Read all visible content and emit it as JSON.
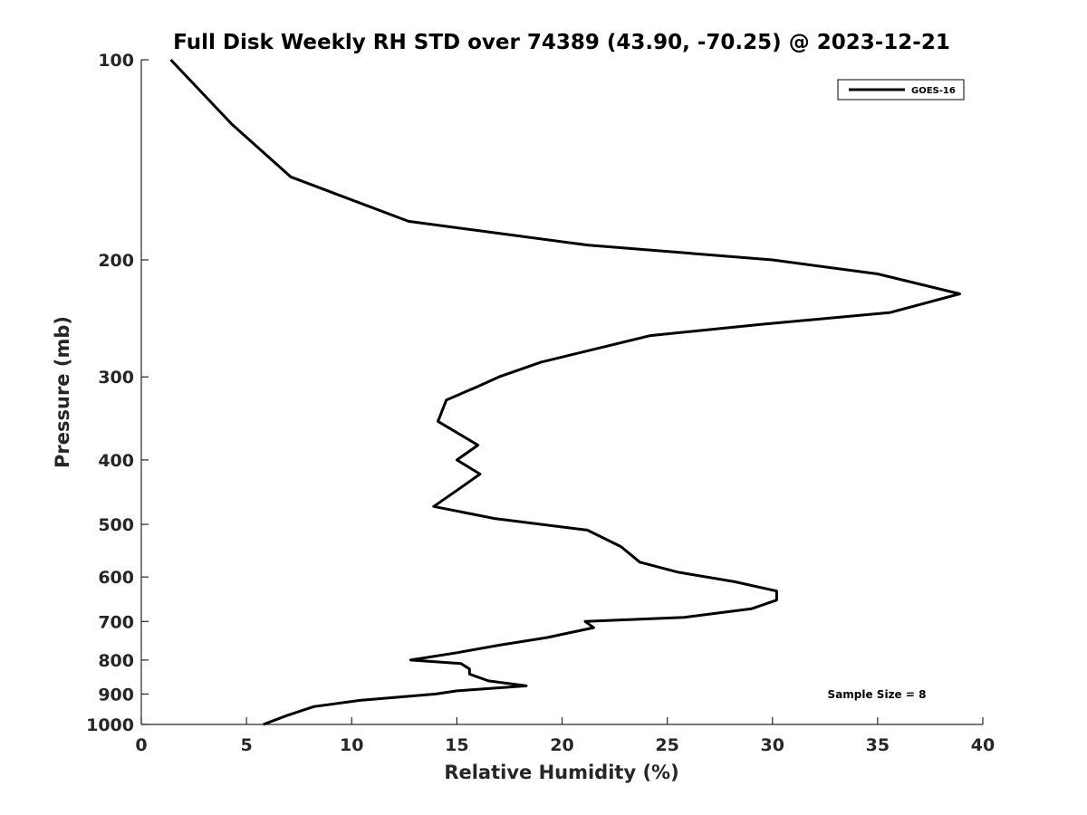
{
  "chart_data": {
    "type": "line",
    "title": "Full Disk Weekly RH STD over 74389 (43.90, -70.25) @ 2023-12-21",
    "xlabel": "Relative Humidity (%)",
    "ylabel": "Pressure (mb)",
    "xlim": [
      0,
      40
    ],
    "ylim": [
      1000,
      100
    ],
    "yscale": "log",
    "y_reversed": true,
    "xticks": [
      "0",
      "5",
      "10",
      "15",
      "20",
      "25",
      "30",
      "35",
      "40"
    ],
    "yticks": [
      "100",
      "200",
      "300",
      "400",
      "500",
      "600",
      "700",
      "800",
      "900",
      "1000"
    ],
    "grid": false,
    "legend_position": "top-right",
    "series": [
      {
        "name": "GOES-16",
        "color": "#000000",
        "points": [
          [
            1.4,
            100
          ],
          [
            4.3,
            125
          ],
          [
            7.1,
            150
          ],
          [
            12.7,
            175
          ],
          [
            21.2,
            190
          ],
          [
            30.0,
            200
          ],
          [
            35.0,
            210
          ],
          [
            38.9,
            225
          ],
          [
            35.6,
            240
          ],
          [
            29.5,
            250
          ],
          [
            24.2,
            260
          ],
          [
            19.0,
            285
          ],
          [
            17.0,
            300
          ],
          [
            16.0,
            310
          ],
          [
            14.5,
            325
          ],
          [
            14.1,
            350
          ],
          [
            16.0,
            380
          ],
          [
            15.0,
            400
          ],
          [
            16.1,
            420
          ],
          [
            15.2,
            440
          ],
          [
            13.9,
            470
          ],
          [
            16.8,
            490
          ],
          [
            21.2,
            510
          ],
          [
            22.8,
            540
          ],
          [
            23.7,
            570
          ],
          [
            25.5,
            590
          ],
          [
            28.2,
            610
          ],
          [
            30.2,
            630
          ],
          [
            30.2,
            650
          ],
          [
            29.0,
            670
          ],
          [
            25.8,
            690
          ],
          [
            21.1,
            700
          ],
          [
            21.5,
            715
          ],
          [
            19.3,
            740
          ],
          [
            17.0,
            760
          ],
          [
            15.0,
            780
          ],
          [
            12.8,
            800
          ],
          [
            15.2,
            810
          ],
          [
            15.6,
            825
          ],
          [
            15.6,
            840
          ],
          [
            16.5,
            860
          ],
          [
            18.3,
            875
          ],
          [
            15.0,
            890
          ],
          [
            14.0,
            900
          ],
          [
            10.4,
            920
          ],
          [
            8.2,
            940
          ],
          [
            6.9,
            970
          ],
          [
            5.8,
            1000
          ]
        ]
      }
    ],
    "annotations": [
      "Sample Size = 8"
    ]
  }
}
